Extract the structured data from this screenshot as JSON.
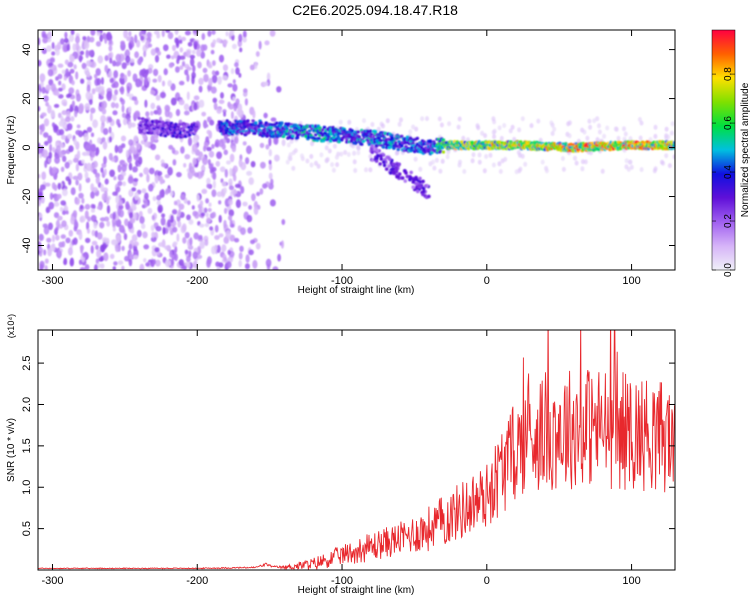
{
  "title": "C2E6.2025.094.18.47.R18",
  "colors": {
    "snr_line": "#e8282d",
    "colormap": [
      "#f0f0f8",
      "#d6b4f8",
      "#a060f0",
      "#6010d8",
      "#1010e0",
      "#00c0e0",
      "#00e040",
      "#80e000",
      "#ffe000",
      "#ff6000",
      "#ff0040"
    ]
  },
  "chart_data": [
    {
      "type": "heatmap",
      "title": "C2E6.2025.094.18.47.R18",
      "xlabel": "Height of straight line (km)",
      "ylabel": "Frequency (Hz)",
      "xlim": [
        -310,
        130
      ],
      "ylim": [
        -50,
        48
      ],
      "xticks": [
        -300,
        -200,
        -100,
        0,
        100
      ],
      "yticks": [
        -40,
        -20,
        0,
        20,
        40
      ],
      "grid": false,
      "colorbar": {
        "label": "Normalized spectral amplitude",
        "range": [
          0.0,
          0.98
        ],
        "ticks": [
          0.0,
          0.2,
          0.4,
          0.6,
          0.8
        ]
      },
      "features": {
        "noise_region_x": [
          -310,
          -140
        ],
        "ridge": {
          "x": [
            -240,
            -210,
            -180,
            -160,
            -140,
            -120,
            -100,
            -80,
            -60,
            -40,
            -30,
            -20,
            0,
            20,
            40,
            60,
            80,
            100,
            130
          ],
          "y": [
            9,
            7,
            8,
            8,
            7,
            6,
            5,
            4,
            2,
            0,
            1,
            1,
            1,
            1,
            0.5,
            0,
            0.5,
            1,
            1
          ],
          "amplitude": [
            0.3,
            0.35,
            0.45,
            0.45,
            0.5,
            0.55,
            0.5,
            0.5,
            0.5,
            0.45,
            0.7,
            0.8,
            0.8,
            0.85,
            0.85,
            0.9,
            0.9,
            0.9,
            0.85
          ]
        },
        "tail_x": [
          -80,
          -40
        ],
        "tail_y": [
          -2,
          -18
        ]
      }
    },
    {
      "type": "line",
      "xlabel": "Height of straight line (km)",
      "ylabel": "SNR (10 * v/v)",
      "yscale_note": "(x10⁴)",
      "xlim": [
        -310,
        130
      ],
      "ylim": [
        0,
        2.9
      ],
      "xticks": [
        -300,
        -200,
        -100,
        0,
        100
      ],
      "yticks": [
        0.5,
        1.0,
        1.5,
        2.0,
        2.5
      ],
      "grid": false,
      "series": [
        {
          "x": [
            -310,
            -250,
            -200,
            -160,
            -152,
            -148,
            -140,
            -120,
            -100,
            -80,
            -60,
            -40,
            -20,
            0,
            10,
            20,
            30,
            50,
            70,
            90,
            110,
            130
          ],
          "y": [
            0.02,
            0.02,
            0.02,
            0.03,
            0.07,
            0.04,
            0.03,
            0.07,
            0.18,
            0.28,
            0.38,
            0.5,
            0.7,
            0.9,
            1.2,
            1.45,
            1.65,
            1.7,
            1.75,
            1.7,
            1.65,
            1.6
          ],
          "amplitude_of_fluctuation": [
            0.005,
            0.005,
            0.005,
            0.01,
            0.02,
            0.01,
            0.02,
            0.08,
            0.12,
            0.18,
            0.2,
            0.28,
            0.35,
            0.4,
            0.55,
            0.6,
            0.7,
            0.75,
            0.75,
            0.75,
            0.7,
            0.7
          ]
        }
      ]
    }
  ]
}
